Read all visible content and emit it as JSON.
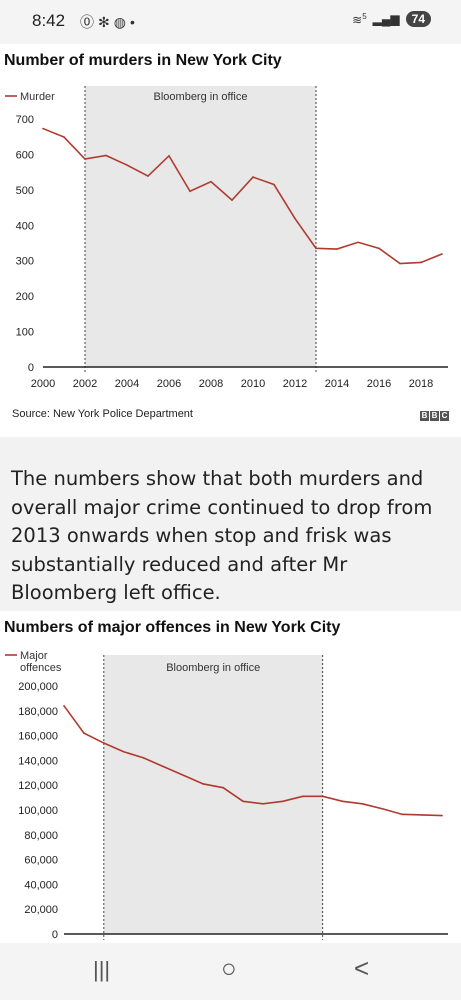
{
  "status_bar": {
    "time": "8:42",
    "left_icons": [
      "notification-icon",
      "pinwheel-icon",
      "shield-icon",
      "dot-icon"
    ],
    "right_icons": [
      "wifi-icon",
      "signal-icon"
    ],
    "wifi_label": "5",
    "battery": "74"
  },
  "chart1": {
    "title": "Number of murders in New York City",
    "source": "Source: New York Police Department",
    "logo": [
      "B",
      "B",
      "C"
    ],
    "chart_data": {
      "type": "line",
      "title": "Number of murders in New York City",
      "legend": [
        "Murder"
      ],
      "legend_position": "top-left",
      "annotation": "Bloomberg in office",
      "shaded_range": [
        2002,
        2013
      ],
      "xlim": [
        2000,
        2019
      ],
      "ylim": [
        0,
        700
      ],
      "x_ticks": [
        2000,
        2002,
        2004,
        2006,
        2008,
        2010,
        2012,
        2014,
        2016,
        2018
      ],
      "y_ticks": [
        0,
        100,
        200,
        300,
        400,
        500,
        600,
        700
      ],
      "series": [
        {
          "name": "Murder",
          "color": "#b03a2e",
          "x": [
            2000,
            2001,
            2002,
            2003,
            2004,
            2005,
            2006,
            2007,
            2008,
            2009,
            2010,
            2011,
            2012,
            2013,
            2014,
            2015,
            2016,
            2017,
            2018,
            2019
          ],
          "values": [
            673,
            649,
            587,
            597,
            570,
            539,
            596,
            496,
            523,
            471,
            536,
            515,
            419,
            335,
            333,
            352,
            335,
            292,
            295,
            319
          ]
        }
      ]
    }
  },
  "paragraph": "The numbers show that both murders and overall major crime continued to drop from 2013 onwards when stop and frisk was substantially reduced and after Mr Bloomberg left office.",
  "chart2": {
    "title": "Numbers of major offences in New York City",
    "chart_data": {
      "type": "line",
      "title": "Numbers of major offences in New York City",
      "legend": [
        "Major offences"
      ],
      "legend_position": "top-left",
      "annotation": "Bloomberg in office",
      "shaded_range": [
        2002,
        2013
      ],
      "xlim": [
        2000,
        2019
      ],
      "ylim": [
        0,
        200000
      ],
      "y_ticks": [
        0,
        20000,
        40000,
        60000,
        80000,
        100000,
        120000,
        140000,
        160000,
        180000,
        200000
      ],
      "y_tick_labels": [
        "0",
        "20,000",
        "40,000",
        "60,000",
        "80,000",
        "100,000",
        "120,000",
        "140,000",
        "160,000",
        "180,000",
        "200,000"
      ],
      "series": [
        {
          "name": "Major offences",
          "color": "#b03a2e",
          "x": [
            2000,
            2001,
            2002,
            2003,
            2004,
            2005,
            2006,
            2007,
            2008,
            2009,
            2010,
            2011,
            2012,
            2013,
            2014,
            2015,
            2016,
            2017,
            2018,
            2019
          ],
          "values": [
            184000,
            162000,
            154000,
            147000,
            142000,
            135000,
            128000,
            121000,
            118000,
            107000,
            105000,
            107000,
            111000,
            111000,
            107000,
            105000,
            101000,
            96500,
            96000,
            95500
          ]
        }
      ]
    }
  },
  "nav_bar": {
    "recents": "|||",
    "home": "○",
    "back": "<"
  }
}
